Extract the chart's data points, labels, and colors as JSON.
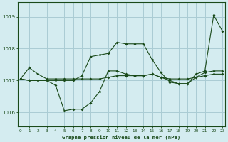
{
  "title": "Graphe pression niveau de la mer (hPa)",
  "background_color": "#d4ecf0",
  "grid_color": "#aaccd4",
  "line_color": "#1a4a1a",
  "xlim": [
    -0.3,
    23.3
  ],
  "ylim": [
    1015.55,
    1019.45
  ],
  "yticks": [
    1016,
    1017,
    1018,
    1019
  ],
  "xticks": [
    0,
    1,
    2,
    3,
    4,
    5,
    6,
    7,
    8,
    9,
    10,
    11,
    12,
    13,
    14,
    15,
    16,
    17,
    18,
    19,
    20,
    21,
    22,
    23
  ],
  "series_flat": [
    1017.05,
    1017.4,
    1017.2,
    1017.05,
    1017.05,
    1017.05,
    1017.05,
    1017.05,
    1017.05,
    1017.05,
    1017.1,
    1017.15,
    1017.15,
    1017.15,
    1017.15,
    1017.2,
    1017.1,
    1017.05,
    1017.05,
    1017.05,
    1017.1,
    1017.15,
    1017.2,
    1017.2
  ],
  "series_dip": [
    1017.05,
    1017.0,
    1017.0,
    1017.0,
    1016.85,
    1016.05,
    1016.1,
    1016.1,
    1016.3,
    1016.65,
    1017.3,
    1017.3,
    1017.2,
    1017.15,
    1017.15,
    1017.2,
    1017.1,
    1017.0,
    1016.9,
    1016.9,
    1017.1,
    1017.25,
    1017.3,
    1017.3
  ],
  "series_peak": [
    1017.05,
    1017.0,
    1017.0,
    1017.0,
    1017.0,
    1017.0,
    1017.0,
    1017.15,
    1017.75,
    1017.8,
    1017.85,
    1018.2,
    1018.15,
    1018.15,
    1018.15,
    1017.65,
    1017.25,
    1016.95,
    1016.9,
    1016.9,
    1017.2,
    1017.3,
    1019.05,
    1018.55
  ]
}
